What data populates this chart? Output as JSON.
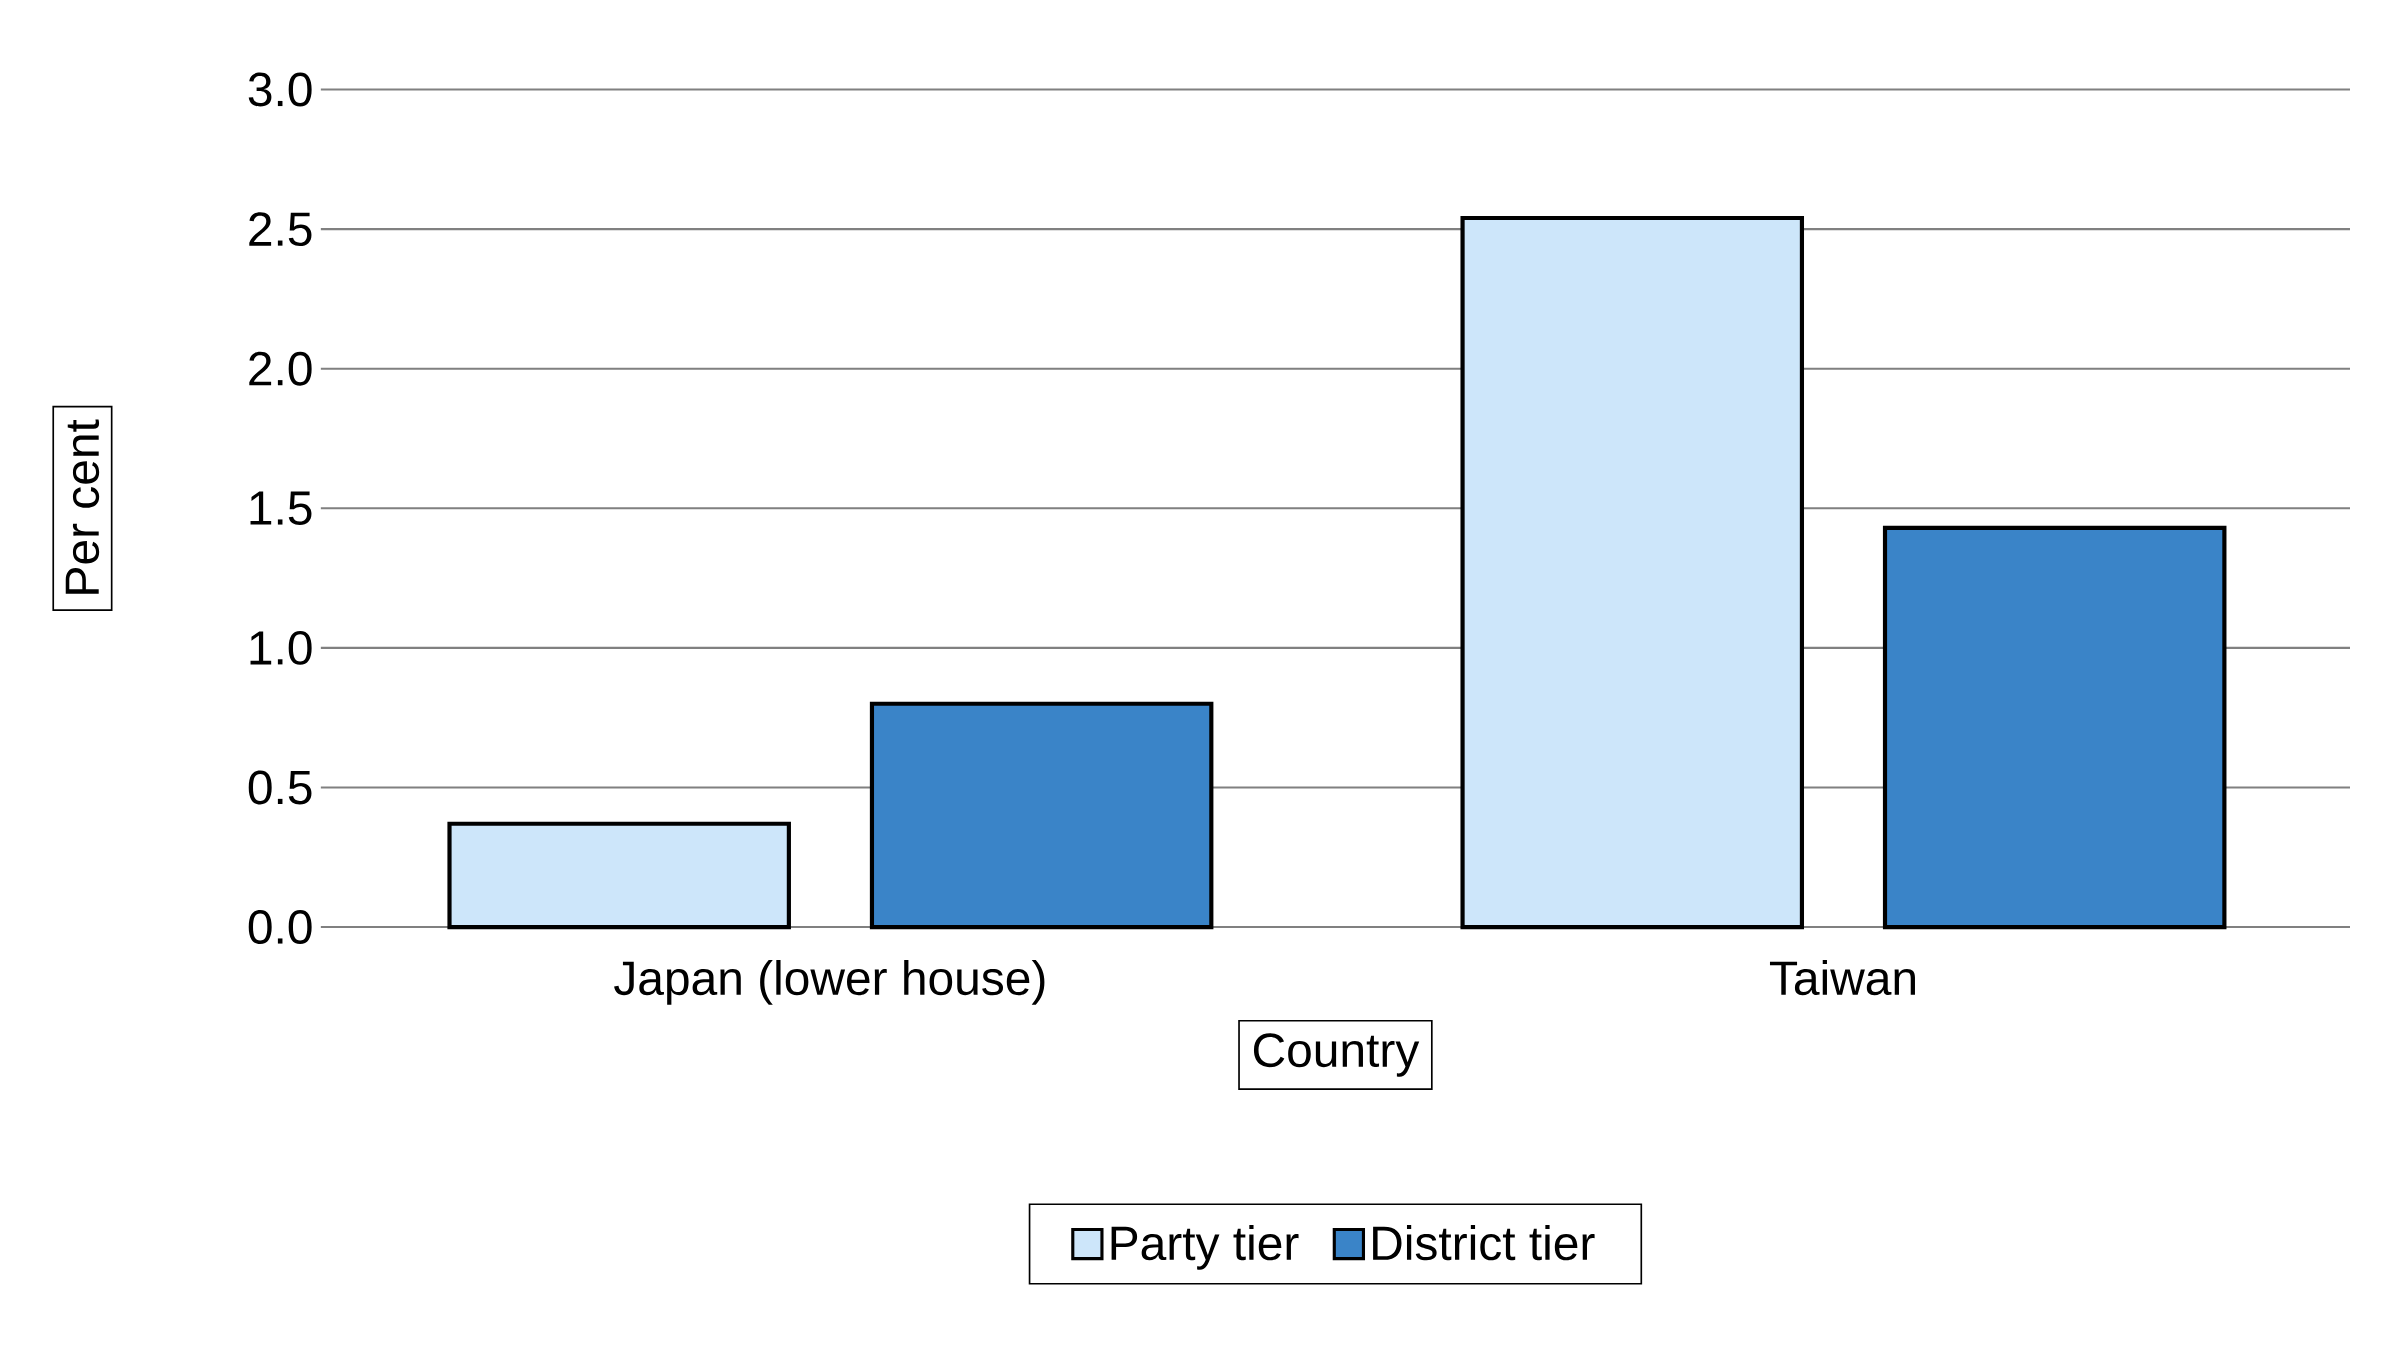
{
  "chart_data": {
    "type": "bar",
    "xlabel": "Country",
    "ylabel": "Per cent",
    "categories": [
      "Japan (lower house)",
      "Taiwan"
    ],
    "series": [
      {
        "name": "Party tier",
        "color": "#cde6fa",
        "values": [
          0.37,
          2.54
        ]
      },
      {
        "name": "District tier",
        "color": "#3a84c8",
        "values": [
          0.8,
          1.43
        ]
      }
    ],
    "ylim": [
      0,
      3
    ],
    "yticks": [
      {
        "value": 0,
        "label": "0.0"
      },
      {
        "value": 0.5,
        "label": "0.5"
      },
      {
        "value": 1,
        "label": "1.0"
      },
      {
        "value": 1.5,
        "label": "1.5"
      },
      {
        "value": 2,
        "label": "2.0"
      },
      {
        "value": 2.5,
        "label": "2.5"
      },
      {
        "value": 3,
        "label": "3.0"
      }
    ],
    "grid": "y",
    "legend": "bottom"
  }
}
